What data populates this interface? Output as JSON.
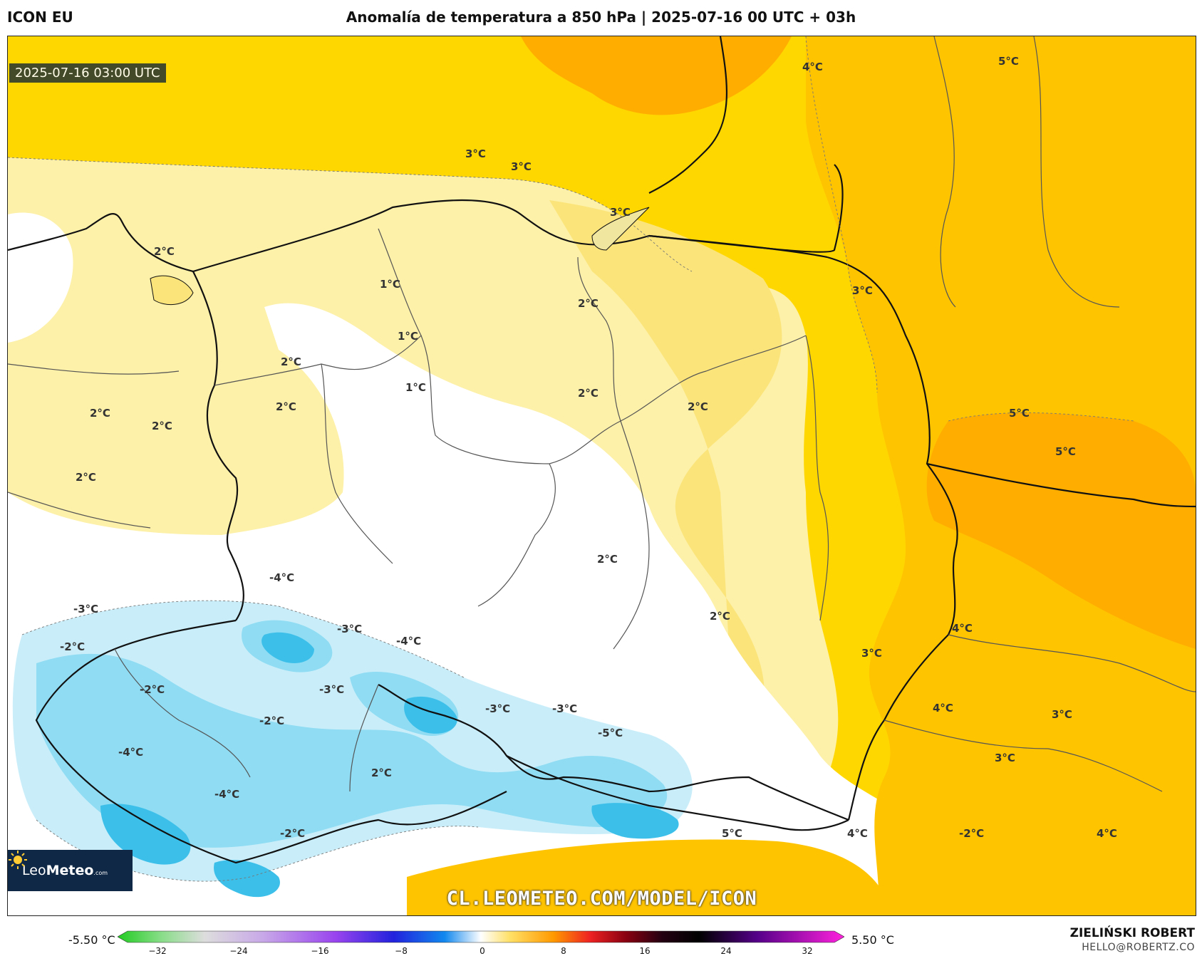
{
  "header": {
    "model": "ICON EU",
    "title": "Anomalía de temperatura a 850 hPa | 2025-07-16 00 UTC + 03h"
  },
  "map": {
    "valid_time": "2025-07-16 03:00 UTC",
    "watermark": "CL.LEOMETEO.COM/MODEL/ICON",
    "logo": {
      "brand_light": "Leo",
      "brand_bold": "Meteo",
      "suffix": ".com"
    },
    "labels": [
      "3°C",
      "3°C",
      "4°C",
      "5°C",
      "2°C",
      "3°C",
      "1°C",
      "2°C",
      "3°C",
      "1°C",
      "2°C",
      "1°C",
      "2°C",
      "2°C",
      "2°C",
      "2°C",
      "2°C",
      "5°C",
      "5°C",
      "2°C",
      "2°C",
      "-4°C",
      "-3°C",
      "-3°C",
      "-4°C",
      "-2°C",
      "4°C",
      "3°C",
      "-2°C",
      "-3°C",
      "-3°C",
      "-3°C",
      "-2°C",
      "-5°C",
      "4°C",
      "3°C",
      "-4°C",
      "2°C",
      "3°C",
      "-4°C",
      "-2°C",
      "2°C",
      "5°C",
      "4°C",
      "-2°C",
      "4°C"
    ]
  },
  "colorbar": {
    "min_label": "-5.50 °C",
    "max_label": "5.50 °C",
    "ticks": [
      "−32",
      "−24",
      "−16",
      "−8",
      "0",
      "8",
      "16",
      "24",
      "32"
    ]
  },
  "footer": {
    "author": "ZIELIŃSKI ROBERT",
    "email": "HELLO@ROBERTZ.CO"
  }
}
